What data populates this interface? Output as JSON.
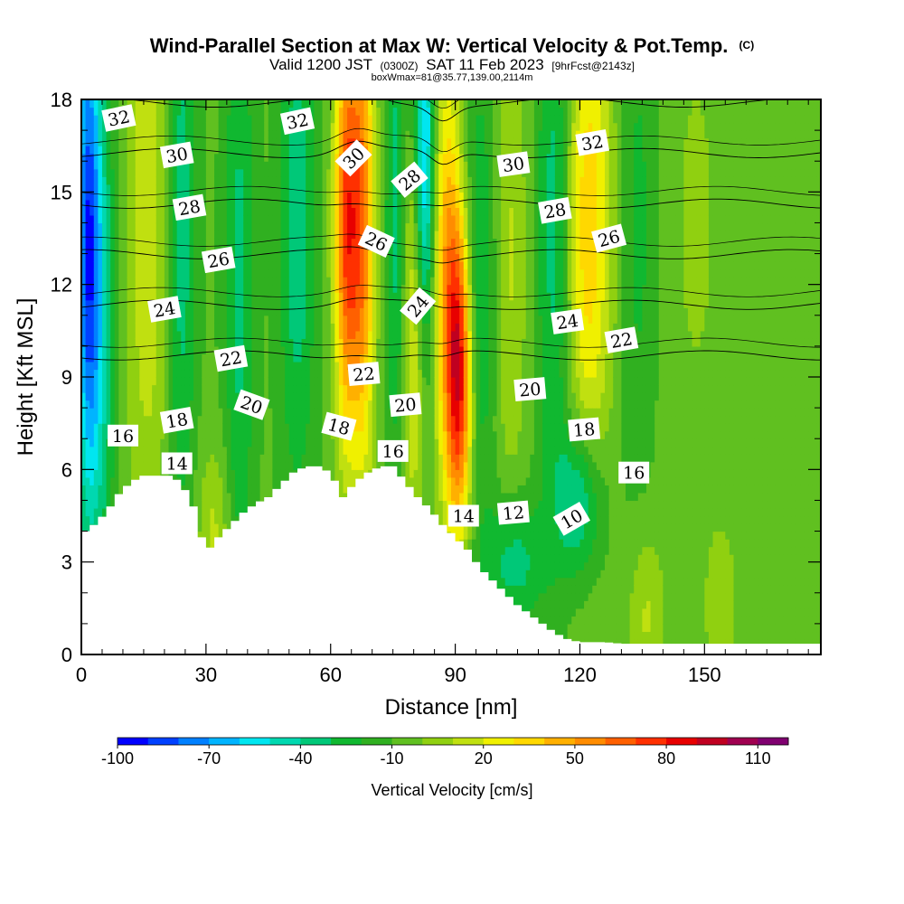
{
  "chart_data": {
    "type": "heatmap",
    "title": "Wind-Parallel Section at Max W: Vertical Velocity & Pot.Temp.",
    "title_mark": "(C)",
    "subtitle_parts": [
      "Valid 1200 JST",
      "(0300Z)",
      "SAT 11 Feb 2023",
      "[9hrFcst@2143z]"
    ],
    "subtitle2": "boxWmax=81@35.77,139.00,2114m",
    "xlabel": "Distance [nm]",
    "ylabel": "Height [Kft MSL]",
    "xlim": [
      0,
      178
    ],
    "ylim": [
      0,
      18
    ],
    "x_ticks": [
      0,
      30,
      60,
      90,
      120,
      150
    ],
    "y_ticks": [
      0,
      3,
      6,
      9,
      12,
      15,
      18
    ],
    "colorbar": {
      "label": "Vertical Velocity [cm/s]",
      "tick_values": [
        -100,
        -70,
        -40,
        -10,
        20,
        50,
        80,
        110
      ],
      "levels": [
        -100,
        -90,
        -80,
        -70,
        -60,
        -50,
        -40,
        -30,
        -20,
        -10,
        0,
        10,
        20,
        30,
        40,
        50,
        60,
        70,
        80,
        90,
        100,
        110,
        120
      ],
      "colors": [
        "#0000ff",
        "#0040ff",
        "#0080ff",
        "#00b4ff",
        "#00e6f0",
        "#00d8b0",
        "#00c878",
        "#10b830",
        "#30b020",
        "#60c020",
        "#90d010",
        "#c0e010",
        "#f0f000",
        "#ffd800",
        "#ffb000",
        "#ff8c00",
        "#ff6000",
        "#ff3000",
        "#e80000",
        "#c00020",
        "#a00050",
        "#800070"
      ]
    },
    "velocity_features": [
      {
        "x": 1.5,
        "z": 14,
        "w": -60,
        "sx": 2,
        "sz": 6
      },
      {
        "x": 4,
        "z": 11,
        "w": -38,
        "sx": 3,
        "sz": 6
      },
      {
        "x": 24,
        "z": 14,
        "w": -30,
        "sx": 2.5,
        "sz": 7
      },
      {
        "x": 38,
        "z": 12,
        "w": -25,
        "sx": 2.5,
        "sz": 8
      },
      {
        "x": 52,
        "z": 14,
        "w": -30,
        "sx": 3,
        "sz": 6
      },
      {
        "x": 16,
        "z": 14,
        "w": 25,
        "sx": 4,
        "sz": 8
      },
      {
        "x": 64,
        "z": 14,
        "w": 80,
        "sx": 2.2,
        "sz": 5
      },
      {
        "x": 68,
        "z": 14,
        "w": 55,
        "sx": 2,
        "sz": 6
      },
      {
        "x": 76,
        "z": 14,
        "w": -30,
        "sx": 2,
        "sz": 6
      },
      {
        "x": 82.5,
        "z": 16,
        "w": -65,
        "sx": 1.8,
        "sz": 5
      },
      {
        "x": 80,
        "z": 11,
        "w": 40,
        "sx": 2.2,
        "sz": 5
      },
      {
        "x": 88,
        "z": 12.5,
        "w": 50,
        "sx": 2.5,
        "sz": 5
      },
      {
        "x": 91,
        "z": 9,
        "w": 85,
        "sx": 2.2,
        "sz": 3.5
      },
      {
        "x": 96,
        "z": 12,
        "w": -25,
        "sx": 3,
        "sz": 5
      },
      {
        "x": 103,
        "z": 13,
        "w": 20,
        "sx": 3,
        "sz": 6
      },
      {
        "x": 114,
        "z": 14,
        "w": -30,
        "sx": 3,
        "sz": 6
      },
      {
        "x": 122,
        "z": 14,
        "w": 45,
        "sx": 4,
        "sz": 6
      },
      {
        "x": 134,
        "z": 14,
        "w": -15,
        "sx": 3,
        "sz": 6
      },
      {
        "x": 148,
        "z": 14,
        "w": 10,
        "sx": 5,
        "sz": 6
      },
      {
        "x": 120,
        "z": 5,
        "w": -40,
        "sx": 4,
        "sz": 1.8
      },
      {
        "x": 104,
        "z": 3,
        "w": -30,
        "sx": 5,
        "sz": 1.5
      },
      {
        "x": 136,
        "z": 1.3,
        "w": 20,
        "sx": 3,
        "sz": 2
      },
      {
        "x": 154,
        "z": 1.5,
        "w": 15,
        "sx": 3,
        "sz": 2
      },
      {
        "x": 32,
        "z": 4,
        "w": 20,
        "sx": 3,
        "sz": 2
      }
    ],
    "terrain_profile": {
      "x": [
        0,
        3,
        6,
        9,
        12,
        15,
        18,
        21,
        24,
        27,
        30,
        33,
        36,
        39,
        42,
        45,
        48,
        51,
        54,
        57,
        60,
        63,
        66,
        69,
        72,
        75,
        78,
        81,
        84,
        87,
        90,
        93,
        96,
        99,
        102,
        105,
        108,
        111,
        114,
        117,
        120,
        123,
        126,
        130,
        140,
        150,
        160,
        170,
        178
      ],
      "height": [
        3.9,
        4.2,
        4.6,
        5.2,
        5.6,
        5.8,
        5.8,
        5.8,
        5.6,
        4.8,
        3.3,
        3.8,
        4.2,
        4.6,
        4.9,
        5.1,
        5.5,
        5.9,
        6.1,
        6.1,
        5.9,
        5.1,
        5.6,
        5.9,
        6.1,
        6.1,
        5.6,
        5.1,
        4.7,
        4.2,
        3.8,
        3.4,
        2.8,
        2.4,
        2.0,
        1.6,
        1.3,
        1.0,
        0.7,
        0.5,
        0.4,
        0.4,
        0.4,
        0.35,
        0.35,
        0.35,
        0.35,
        0.35,
        0.35
      ]
    },
    "theta_contour_levels": [
      10,
      12,
      14,
      16,
      18,
      20,
      22,
      24,
      26,
      28,
      30,
      32
    ],
    "theta_contour_labels": [
      {
        "text": "32",
        "x": 9,
        "z": 17.4,
        "angle": -12
      },
      {
        "text": "32",
        "x": 52,
        "z": 17.3,
        "angle": -12
      },
      {
        "text": "32",
        "x": 123,
        "z": 16.6,
        "angle": -10
      },
      {
        "text": "30",
        "x": 23,
        "z": 16.2,
        "angle": -10
      },
      {
        "text": "30",
        "x": 65.5,
        "z": 16.1,
        "angle": -45
      },
      {
        "text": "30",
        "x": 104,
        "z": 15.9,
        "angle": -8
      },
      {
        "text": "28",
        "x": 26,
        "z": 14.5,
        "angle": -10
      },
      {
        "text": "28",
        "x": 79,
        "z": 15.4,
        "angle": -40
      },
      {
        "text": "28",
        "x": 114,
        "z": 14.4,
        "angle": -10
      },
      {
        "text": "26",
        "x": 33,
        "z": 12.8,
        "angle": -10
      },
      {
        "text": "26",
        "x": 71,
        "z": 13.4,
        "angle": 25
      },
      {
        "text": "26",
        "x": 127,
        "z": 13.5,
        "angle": -15
      },
      {
        "text": "24",
        "x": 20,
        "z": 11.2,
        "angle": -10
      },
      {
        "text": "24",
        "x": 81,
        "z": 11.3,
        "angle": -50
      },
      {
        "text": "24",
        "x": 117,
        "z": 10.8,
        "angle": -8
      },
      {
        "text": "22",
        "x": 36,
        "z": 9.6,
        "angle": -10
      },
      {
        "text": "22",
        "x": 68,
        "z": 9.1,
        "angle": -5
      },
      {
        "text": "22",
        "x": 130,
        "z": 10.2,
        "angle": -10
      },
      {
        "text": "20",
        "x": 41,
        "z": 8.1,
        "angle": 20
      },
      {
        "text": "20",
        "x": 78,
        "z": 8.1,
        "angle": -5
      },
      {
        "text": "20",
        "x": 108,
        "z": 8.6,
        "angle": -5
      },
      {
        "text": "18",
        "x": 23,
        "z": 7.6,
        "angle": -10
      },
      {
        "text": "18",
        "x": 62,
        "z": 7.4,
        "angle": 15
      },
      {
        "text": "18",
        "x": 121,
        "z": 7.3,
        "angle": -5
      },
      {
        "text": "16",
        "x": 10,
        "z": 7.1,
        "angle": 0
      },
      {
        "text": "16",
        "x": 75,
        "z": 6.6,
        "angle": 0
      },
      {
        "text": "16",
        "x": 133,
        "z": 5.9,
        "angle": 0
      },
      {
        "text": "14",
        "x": 23,
        "z": 6.2,
        "angle": 0
      },
      {
        "text": "14",
        "x": 92,
        "z": 4.5,
        "angle": 0
      },
      {
        "text": "12",
        "x": 104,
        "z": 4.6,
        "angle": -5
      },
      {
        "text": "10",
        "x": 118,
        "z": 4.4,
        "angle": -30
      }
    ]
  }
}
